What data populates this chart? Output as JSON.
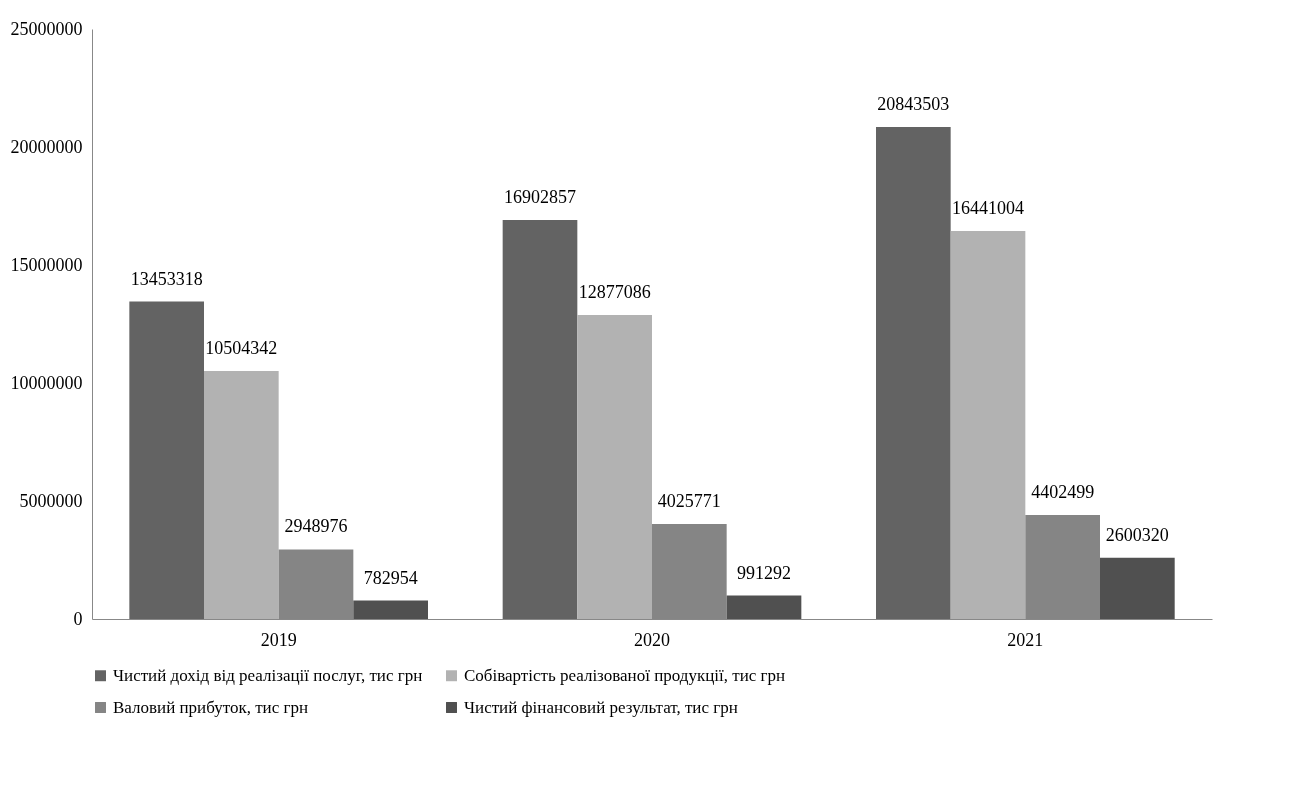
{
  "chart_data": {
    "type": "bar",
    "categories": [
      "2019",
      "2020",
      "2021"
    ],
    "series": [
      {
        "name": "Чистий дохід від реалізації послуг, тис грн",
        "color": "#636363",
        "values": [
          13453318,
          16902857,
          20843503
        ]
      },
      {
        "name": "Собівартість реалізованої продукції, тис грн",
        "color": "#b2b2b2",
        "values": [
          10504342,
          12877086,
          16441004
        ]
      },
      {
        "name": "Валовий прибуток, тис грн",
        "color": "#858585",
        "values": [
          2948976,
          4025771,
          4402499
        ]
      },
      {
        "name": "Чистий фінансовий результат, тис грн",
        "color": "#505050",
        "values": [
          782954,
          991292,
          2600320
        ]
      }
    ],
    "ylim": [
      0,
      25000000
    ],
    "yticks": [
      0,
      5000000,
      10000000,
      15000000,
      20000000,
      25000000
    ],
    "data_labels": true,
    "legend": "bottom"
  }
}
